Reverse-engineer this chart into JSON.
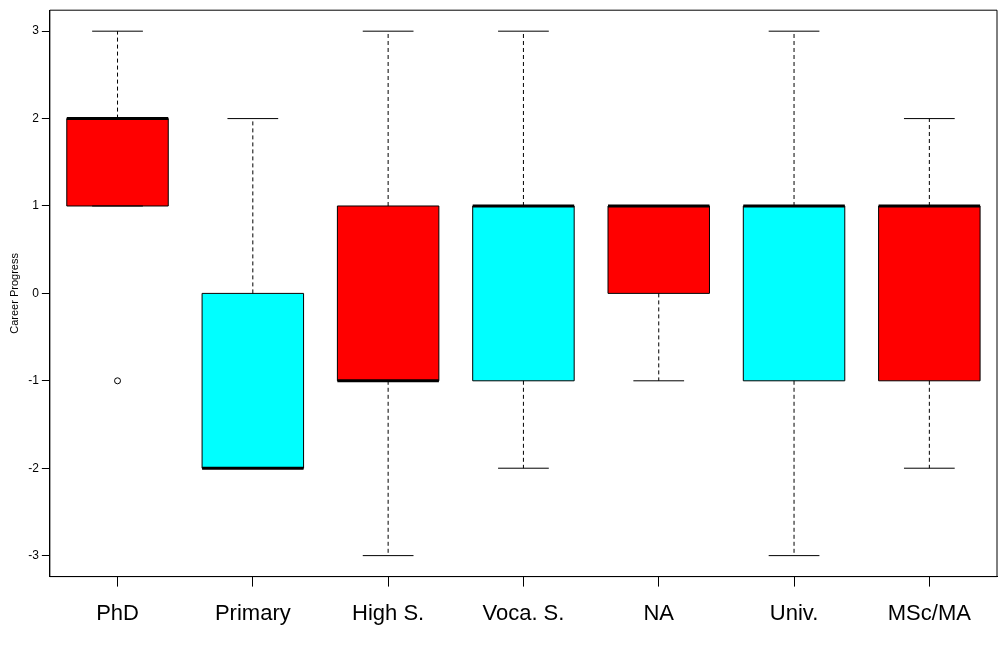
{
  "chart_data": {
    "type": "box",
    "ylabel": "Career Progress",
    "categories": [
      "PhD",
      "Primary",
      "High S.",
      "Voca. S.",
      "NA",
      "Univ.",
      "MSc/MA"
    ],
    "colors": [
      "#ff0000",
      "#00ffff",
      "#ff0000",
      "#00ffff",
      "#ff0000",
      "#00ffff",
      "#ff0000"
    ],
    "boxes": [
      {
        "low": 1,
        "q1": 1,
        "median": 2,
        "q3": 2,
        "high": 3,
        "outliers": [
          -1
        ]
      },
      {
        "low": -2,
        "q1": -2,
        "median": -2,
        "q3": 0,
        "high": 2
      },
      {
        "low": -3,
        "q1": -1,
        "median": -1,
        "q3": 1,
        "high": 3
      },
      {
        "low": -2,
        "q1": -1,
        "median": 1,
        "q3": 1,
        "high": 3
      },
      {
        "low": -1,
        "q1": 0,
        "median": 1,
        "q3": 1,
        "high": 1
      },
      {
        "low": -3,
        "q1": -1,
        "median": 1,
        "q3": 1,
        "high": 3
      },
      {
        "low": -2,
        "q1": -1,
        "median": 1,
        "q3": 1,
        "high": 2
      }
    ],
    "ylim": [
      -3.24,
      3.24
    ],
    "yticks": [
      -3,
      -2,
      -1,
      0,
      1,
      2,
      3
    ],
    "grid": false
  }
}
